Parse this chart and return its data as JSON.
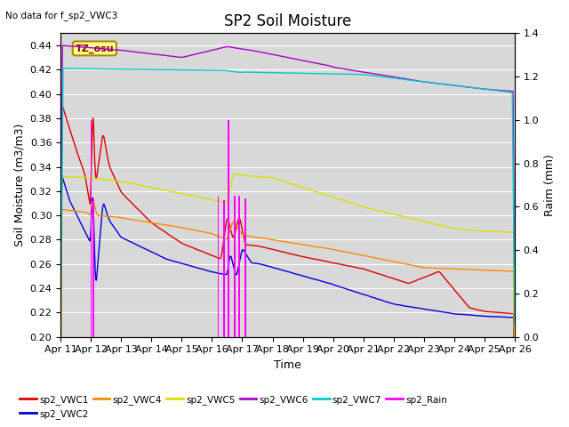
{
  "title": "SP2 Soil Moisture",
  "no_data_text": "No data for f_sp2_VWC3",
  "xlabel": "Time",
  "ylabel_left": "Soil Moisture (m3/m3)",
  "ylabel_right": "Raim (mm)",
  "tz_label": "TZ_osu",
  "ylim_left": [
    0.2,
    0.45
  ],
  "ylim_right": [
    0.0,
    1.4
  ],
  "background_color": "#d8d8d8",
  "colors": {
    "sp2_VWC1": "#dd0000",
    "sp2_VWC2": "#0000dd",
    "sp2_VWC4": "#ff8800",
    "sp2_VWC5": "#dddd00",
    "sp2_VWC6": "#aa00cc",
    "sp2_VWC7": "#00cccc",
    "sp2_Rain": "#ff00ff"
  },
  "title_fontsize": 12,
  "axis_fontsize": 9,
  "tick_fontsize": 8
}
